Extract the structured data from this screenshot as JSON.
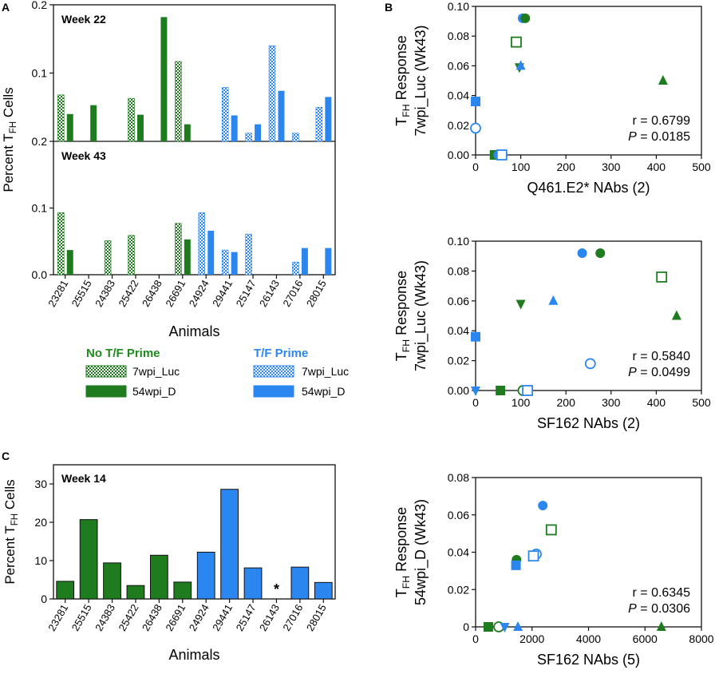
{
  "colors": {
    "green": "#1e7b1e",
    "blue": "#2b86f0",
    "axis": "#111111",
    "legend_green_text": "#1e8a1e",
    "legend_blue_text": "#2b86f0"
  },
  "panel_labels": {
    "a": "A",
    "b": "B",
    "c": "C"
  },
  "legend": {
    "no_prime_title": "No T/F Prime",
    "prime_title": "T/F Prime",
    "items_no_prime": [
      {
        "label": "7wpi_Luc",
        "style": "checker",
        "color": "green"
      },
      {
        "label": "54wpi_D",
        "style": "solid",
        "color": "green"
      }
    ],
    "items_prime": [
      {
        "label": "7wpi_Luc",
        "style": "checker",
        "color": "blue"
      },
      {
        "label": "54wpi_D",
        "style": "solid",
        "color": "blue"
      }
    ]
  },
  "chart_data": [
    {
      "id": "A",
      "type": "bar",
      "title": "",
      "ylabel_prefix": "Percent T",
      "ylabel_sub": "FH",
      "ylabel_suffix": " Cells",
      "xlabel": "Animals",
      "categories": [
        "23281",
        "25515",
        "24383",
        "25422",
        "26438",
        "26691",
        "24924",
        "29441",
        "25147",
        "26143",
        "27016",
        "28015"
      ],
      "group_color": [
        "green",
        "green",
        "green",
        "green",
        "green",
        "green",
        "blue",
        "blue",
        "blue",
        "blue",
        "blue",
        "blue"
      ],
      "subpanels": [
        {
          "label": "Week 22",
          "ylim": [
            0,
            0.2
          ],
          "yticks": [
            0.2,
            0.1
          ],
          "ytick_labels": [
            "0.2",
            "0.1"
          ],
          "series": [
            {
              "name": "7wpi_Luc",
              "style": "checker",
              "values": [
                0.068,
                0,
                0,
                0.063,
                0,
                0.117,
                0,
                0.079,
                0.012,
                0.14,
                0.012,
                0.05
              ]
            },
            {
              "name": "54wpi_D",
              "style": "solid",
              "values": [
                0.04,
                0.053,
                0,
                0.039,
                0.182,
                0.025,
                0,
                0.038,
                0.025,
                0.074,
                0,
                0.065
              ]
            }
          ]
        },
        {
          "label": "Week 43",
          "ylim": [
            0,
            0.2
          ],
          "yticks": [
            0.2,
            0.1,
            0.0
          ],
          "ytick_labels": [
            "0.2",
            "0.1",
            "0.0"
          ],
          "series": [
            {
              "name": "7wpi_Luc",
              "style": "checker",
              "values": [
                0.093,
                0,
                0.051,
                0.059,
                0,
                0.077,
                0.093,
                0.037,
                0.061,
                0,
                0.019,
                0
              ]
            },
            {
              "name": "54wpi_D",
              "style": "solid",
              "values": [
                0.037,
                0,
                0,
                0,
                0,
                0.053,
                0.066,
                0.034,
                0,
                0,
                0.04,
                0.04
              ]
            }
          ]
        }
      ]
    },
    {
      "id": "C",
      "type": "bar",
      "title": "Week 14",
      "ylabel_prefix": "Percent T",
      "ylabel_sub": "FH",
      "ylabel_suffix": " Cells",
      "xlabel": "Animals",
      "ylim": [
        0,
        35
      ],
      "yticks": [
        0,
        10,
        20,
        30
      ],
      "categories": [
        "23281",
        "25515",
        "24383",
        "25422",
        "26438",
        "26691",
        "24924",
        "29441",
        "25147",
        "26143",
        "27016",
        "28015"
      ],
      "group_color": [
        "green",
        "green",
        "green",
        "green",
        "green",
        "green",
        "blue",
        "blue",
        "blue",
        "blue",
        "blue",
        "blue"
      ],
      "values": [
        4.6,
        20.7,
        9.4,
        3.5,
        11.4,
        4.4,
        12.2,
        28.6,
        8.1,
        0,
        8.3,
        4.3
      ],
      "annotations": [
        {
          "category": "26143",
          "text": "*"
        }
      ]
    },
    {
      "id": "B1",
      "type": "scatter",
      "xlabel": "Q461.E2* NAbs (2)",
      "ylabel_top_prefix": "T",
      "ylabel_top_sub": "FH",
      "ylabel_top_suffix": " Response",
      "ylabel_bottom": "7wpi_Luc (Wk43)",
      "xlim": [
        0,
        500
      ],
      "ylim": [
        0,
        0.1
      ],
      "xticks": [
        0,
        100,
        200,
        300,
        400,
        500
      ],
      "yticks": [
        0,
        0.02,
        0.04,
        0.06,
        0.08,
        0.1
      ],
      "ytick_labels": [
        "0.00",
        "0.02",
        "0.04",
        "0.06",
        "0.08",
        "0.10"
      ],
      "stats": {
        "r": "r = 0.6799",
        "p_label": "P",
        "p_value": " = 0.0185"
      },
      "points": [
        {
          "x": 0,
          "y": 0.036,
          "marker": "square",
          "fill": true,
          "color": "blue"
        },
        {
          "x": 0,
          "y": 0.018,
          "marker": "circle",
          "fill": false,
          "color": "blue"
        },
        {
          "x": 42,
          "y": 0.0,
          "marker": "square",
          "fill": true,
          "color": "green"
        },
        {
          "x": 50,
          "y": 0.0,
          "marker": "circle",
          "fill": true,
          "color": "blue"
        },
        {
          "x": 58,
          "y": 0.0,
          "marker": "square",
          "fill": false,
          "color": "blue"
        },
        {
          "x": 90,
          "y": 0.076,
          "marker": "square",
          "fill": false,
          "color": "green"
        },
        {
          "x": 97,
          "y": 0.059,
          "marker": "triangle-down",
          "fill": true,
          "color": "green"
        },
        {
          "x": 100,
          "y": 0.06,
          "marker": "triangle",
          "fill": true,
          "color": "blue"
        },
        {
          "x": 104,
          "y": 0.092,
          "marker": "circle",
          "fill": true,
          "color": "blue"
        },
        {
          "x": 110,
          "y": 0.092,
          "marker": "circle",
          "fill": true,
          "color": "green"
        },
        {
          "x": 415,
          "y": 0.05,
          "marker": "triangle",
          "fill": true,
          "color": "green"
        }
      ]
    },
    {
      "id": "B2",
      "type": "scatter",
      "xlabel": "SF162 NAbs (2)",
      "ylabel_top_prefix": "T",
      "ylabel_top_sub": "FH",
      "ylabel_top_suffix": " Response",
      "ylabel_bottom": "7wpi_Luc (Wk43)",
      "xlim": [
        0,
        500
      ],
      "ylim": [
        0,
        0.1
      ],
      "xticks": [
        0,
        100,
        200,
        300,
        400,
        500
      ],
      "yticks": [
        0,
        0.02,
        0.04,
        0.06,
        0.08,
        0.1
      ],
      "ytick_labels": [
        "0.00",
        "0.02",
        "0.04",
        "0.06",
        "0.08",
        "0.10"
      ],
      "stats": {
        "r": "r = 0.5840",
        "p_label": "P",
        "p_value": " = 0.0499"
      },
      "points": [
        {
          "x": 0,
          "y": 0.036,
          "marker": "square",
          "fill": true,
          "color": "blue"
        },
        {
          "x": 0,
          "y": 0.0,
          "marker": "triangle-down",
          "fill": true,
          "color": "blue"
        },
        {
          "x": 55,
          "y": 0.0,
          "marker": "square",
          "fill": true,
          "color": "green"
        },
        {
          "x": 105,
          "y": 0.0,
          "marker": "circle",
          "fill": false,
          "color": "green"
        },
        {
          "x": 115,
          "y": 0.0,
          "marker": "square",
          "fill": false,
          "color": "blue"
        },
        {
          "x": 100,
          "y": 0.058,
          "marker": "triangle-down",
          "fill": true,
          "color": "green"
        },
        {
          "x": 172,
          "y": 0.06,
          "marker": "triangle",
          "fill": true,
          "color": "blue"
        },
        {
          "x": 236,
          "y": 0.092,
          "marker": "circle",
          "fill": true,
          "color": "blue"
        },
        {
          "x": 276,
          "y": 0.092,
          "marker": "circle",
          "fill": true,
          "color": "green"
        },
        {
          "x": 254,
          "y": 0.018,
          "marker": "circle",
          "fill": false,
          "color": "blue"
        },
        {
          "x": 412,
          "y": 0.076,
          "marker": "square",
          "fill": false,
          "color": "green"
        },
        {
          "x": 445,
          "y": 0.05,
          "marker": "triangle",
          "fill": true,
          "color": "green"
        }
      ]
    },
    {
      "id": "B3",
      "type": "scatter",
      "xlabel": "SF162 NAbs (5)",
      "ylabel_top_prefix": "T",
      "ylabel_top_sub": "FH",
      "ylabel_top_suffix": " Response",
      "ylabel_bottom": "54wpi_D (Wk43)",
      "xlim": [
        0,
        8000
      ],
      "ylim": [
        0,
        0.08
      ],
      "xticks": [
        0,
        2000,
        4000,
        6000,
        8000
      ],
      "yticks": [
        0,
        0.02,
        0.04,
        0.06,
        0.08
      ],
      "ytick_labels": [
        "0",
        "0.02",
        "0.04",
        "0.06",
        "0.08"
      ],
      "stats": {
        "r": "r = 0.6345",
        "p_label": "P",
        "p_value": " = 0.0306"
      },
      "points": [
        {
          "x": 450,
          "y": 0.0,
          "marker": "square",
          "fill": true,
          "color": "green"
        },
        {
          "x": 820,
          "y": 0.0,
          "marker": "circle",
          "fill": false,
          "color": "green"
        },
        {
          "x": 1030,
          "y": 0.0,
          "marker": "triangle-down",
          "fill": true,
          "color": "blue"
        },
        {
          "x": 1500,
          "y": 0.0,
          "marker": "triangle",
          "fill": true,
          "color": "blue"
        },
        {
          "x": 6580,
          "y": 0.0,
          "marker": "triangle",
          "fill": true,
          "color": "green"
        },
        {
          "x": 1450,
          "y": 0.036,
          "marker": "circle",
          "fill": true,
          "color": "green"
        },
        {
          "x": 1430,
          "y": 0.033,
          "marker": "square",
          "fill": true,
          "color": "blue"
        },
        {
          "x": 2150,
          "y": 0.039,
          "marker": "circle",
          "fill": false,
          "color": "blue"
        },
        {
          "x": 2050,
          "y": 0.038,
          "marker": "square",
          "fill": false,
          "color": "blue"
        },
        {
          "x": 2380,
          "y": 0.065,
          "marker": "circle",
          "fill": true,
          "color": "blue"
        },
        {
          "x": 2680,
          "y": 0.052,
          "marker": "square",
          "fill": false,
          "color": "green"
        }
      ]
    }
  ]
}
